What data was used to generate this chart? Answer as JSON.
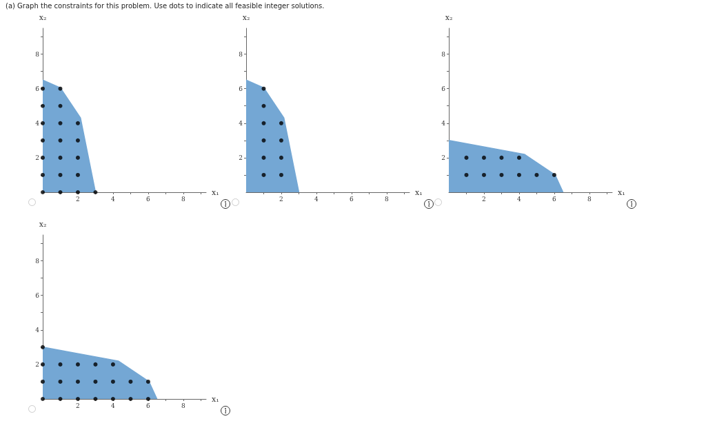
{
  "chart_data": [
    {
      "type": "area",
      "title": "(a) Graph the constraints for this problem. Use dots to indicate all feasible integer solutions.",
      "xlabel": "x₁",
      "ylabel": "x₂",
      "xlim": [
        0,
        9.3
      ],
      "ylim": [
        0,
        9.5
      ],
      "xticks": [
        {
          "value": 1,
          "label": null
        },
        2,
        {
          "value": 3,
          "label": null
        },
        4,
        {
          "value": 5,
          "label": null
        },
        6,
        {
          "value": 7,
          "label": null
        },
        8,
        {
          "value": 9,
          "label": null
        }
      ],
      "yticks": [
        {
          "value": 1,
          "label": null
        },
        2,
        {
          "value": 3,
          "label": null
        },
        4,
        {
          "value": 5,
          "label": null
        },
        6,
        {
          "value": 7,
          "label": null
        },
        8,
        {
          "value": 9,
          "label": null
        }
      ],
      "grid": false,
      "series": [
        {
          "color": "#74a7d4",
          "marker": "none",
          "x": [
            0,
            1,
            2.15,
            3
          ],
          "values": [
            6.5,
            6.05,
            4.3,
            0
          ]
        },
        {
          "type": "scatter",
          "color": "#000000",
          "marker": "circle",
          "x": [
            0,
            0,
            0,
            0,
            0,
            0,
            0,
            1,
            1,
            1,
            1,
            1,
            1,
            1,
            2,
            2,
            2,
            2,
            2,
            3
          ],
          "values": [
            6,
            5,
            4,
            3,
            2,
            1,
            0,
            6,
            5,
            4,
            3,
            2,
            1,
            0,
            4,
            3,
            2,
            1,
            0,
            0
          ]
        }
      ]
    },
    {
      "type": "area",
      "xlabel": "x₁",
      "ylabel": "x₂",
      "xlim": [
        0,
        9.3
      ],
      "ylim": [
        0,
        9.5
      ],
      "xticks": [
        {
          "value": 1,
          "label": null
        },
        2,
        {
          "value": 3,
          "label": null
        },
        4,
        {
          "value": 5,
          "label": null
        },
        6,
        {
          "value": 7,
          "label": null
        },
        8,
        {
          "value": 9,
          "label": null
        }
      ],
      "yticks": [
        {
          "value": 1,
          "label": null
        },
        2,
        {
          "value": 3,
          "label": null
        },
        4,
        {
          "value": 5,
          "label": null
        },
        6,
        {
          "value": 7,
          "label": null
        },
        8,
        {
          "value": 9,
          "label": null
        }
      ],
      "grid": false,
      "series": [
        {
          "color": "#74a7d4",
          "marker": "none",
          "x": [
            0,
            1,
            2.15,
            3
          ],
          "values": [
            6.5,
            6.05,
            4.3,
            0
          ]
        },
        {
          "type": "scatter",
          "color": "#000000",
          "marker": "circle",
          "x": [
            1,
            1,
            1,
            1,
            1,
            1,
            2,
            2,
            2,
            2
          ],
          "values": [
            6,
            5,
            4,
            3,
            2,
            1,
            4,
            3,
            2,
            1
          ]
        }
      ]
    },
    {
      "type": "area",
      "xlabel": "x₁",
      "ylabel": "x₂",
      "xlim": [
        0,
        9.3
      ],
      "ylim": [
        0,
        9.5
      ],
      "xticks": [
        {
          "value": 1,
          "label": null
        },
        2,
        {
          "value": 3,
          "label": null
        },
        4,
        {
          "value": 5,
          "label": null
        },
        6,
        {
          "value": 7,
          "label": null
        },
        8,
        {
          "value": 9,
          "label": null
        }
      ],
      "yticks": [
        {
          "value": 1,
          "label": null
        },
        2,
        {
          "value": 3,
          "label": null
        },
        4,
        {
          "value": 5,
          "label": null
        },
        6,
        {
          "value": 7,
          "label": null
        },
        8,
        {
          "value": 9,
          "label": null
        }
      ],
      "grid": false,
      "series": [
        {
          "color": "#74a7d4",
          "marker": "none",
          "x": [
            0,
            4.3,
            6.05,
            6.5
          ],
          "values": [
            3,
            2.2,
            1,
            0
          ]
        },
        {
          "type": "scatter",
          "color": "#000000",
          "marker": "circle",
          "x": [
            1,
            2,
            3,
            4,
            1,
            2,
            3,
            4,
            5,
            6
          ],
          "values": [
            2,
            2,
            2,
            2,
            1,
            1,
            1,
            1,
            1,
            1
          ]
        }
      ]
    },
    {
      "type": "area",
      "xlabel": "x₁",
      "ylabel": "x₂",
      "xlim": [
        0,
        9.3
      ],
      "ylim": [
        0,
        9.5
      ],
      "xticks": [
        {
          "value": 1,
          "label": null
        },
        2,
        {
          "value": 3,
          "label": null
        },
        4,
        {
          "value": 5,
          "label": null
        },
        6,
        {
          "value": 7,
          "label": null
        },
        8,
        {
          "value": 9,
          "label": null
        }
      ],
      "yticks": [
        {
          "value": 1,
          "label": null
        },
        2,
        {
          "value": 3,
          "label": null
        },
        4,
        {
          "value": 5,
          "label": null
        },
        6,
        {
          "value": 7,
          "label": null
        },
        8,
        {
          "value": 9,
          "label": null
        }
      ],
      "grid": false,
      "series": [
        {
          "color": "#74a7d4",
          "marker": "none",
          "x": [
            0,
            4.3,
            6.05,
            6.5
          ],
          "values": [
            3,
            2.2,
            1,
            0
          ]
        },
        {
          "type": "scatter",
          "color": "#000000",
          "marker": "circle",
          "x": [
            0,
            0,
            1,
            2,
            3,
            4,
            0,
            1,
            2,
            3,
            4,
            5,
            6,
            0,
            1,
            2,
            3,
            4,
            5,
            6
          ],
          "values": [
            3,
            2,
            2,
            2,
            2,
            2,
            1,
            1,
            1,
            1,
            1,
            1,
            1,
            0,
            0,
            0,
            0,
            0,
            0,
            0
          ]
        }
      ]
    }
  ]
}
